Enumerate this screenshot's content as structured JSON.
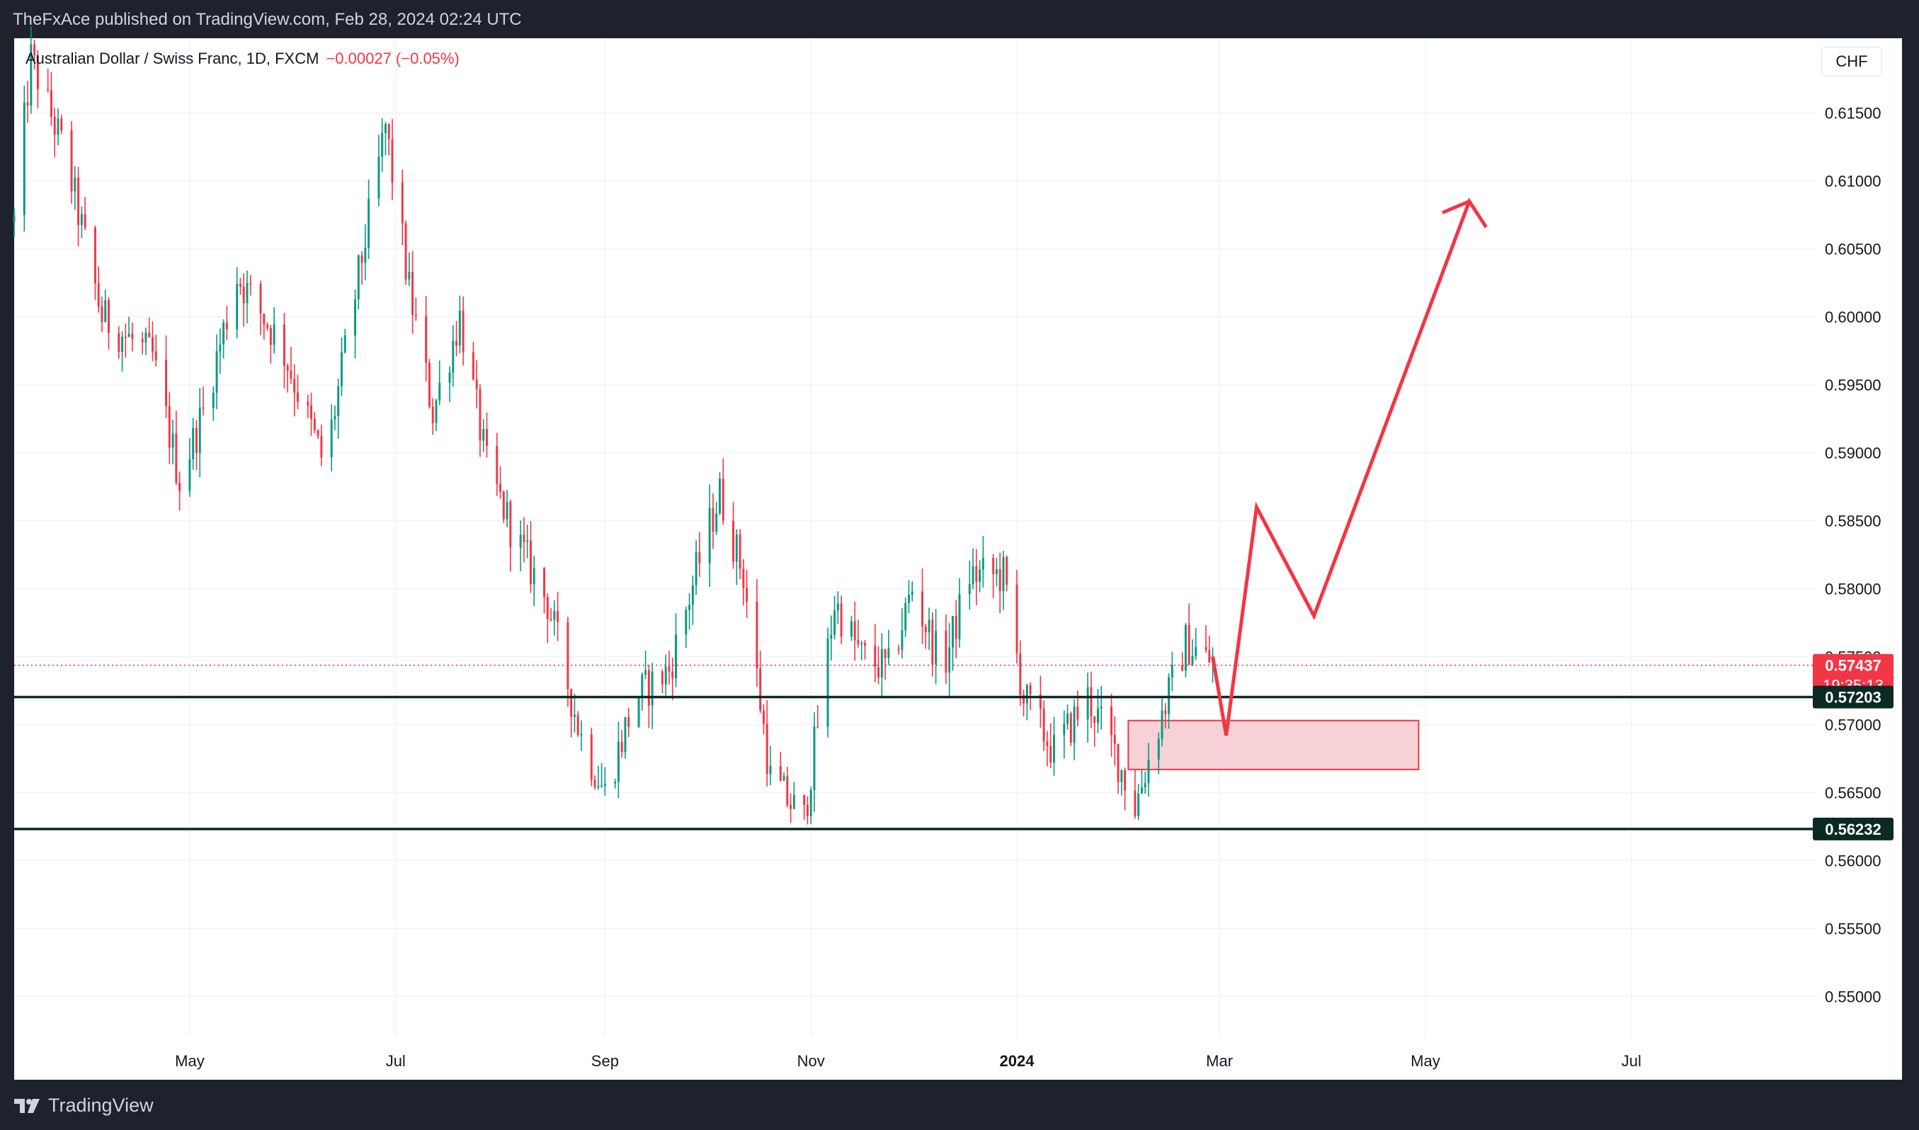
{
  "header": {
    "published": "TheFxAce published on TradingView.com, Feb 28, 2024 02:24 UTC"
  },
  "legend": {
    "symbol": "Australian Dollar / Swiss Franc, 1D, FXCM",
    "change": "−0.00027 (−0.05%)"
  },
  "currency_button": "CHF",
  "brand": {
    "name": "TradingView"
  },
  "colors": {
    "up": "#089981",
    "down": "#f23645",
    "projection": "#f23645",
    "zone_fill": "#f7c9cf",
    "level_line": "#0b2a24",
    "badge_dark": "#0b2a24"
  },
  "chart_data": {
    "type": "candlestick",
    "title": "Australian Dollar / Swiss Franc, 1D, FXCM",
    "ylim": [
      0.547,
      0.6205
    ],
    "xlim": [
      "2023-03-10",
      "2024-08-25"
    ],
    "y_ticks": [
      "0.61500",
      "0.61000",
      "0.60500",
      "0.60000",
      "0.59500",
      "0.59000",
      "0.58500",
      "0.58000",
      "0.57500",
      "0.57000",
      "0.56500",
      "0.56000",
      "0.55500",
      "0.55000"
    ],
    "x_ticks": [
      {
        "label": "May",
        "date": "2023-05-01",
        "bold": false
      },
      {
        "label": "Jul",
        "date": "2023-07-01",
        "bold": false
      },
      {
        "label": "Sep",
        "date": "2023-09-01",
        "bold": false
      },
      {
        "label": "Nov",
        "date": "2023-11-01",
        "bold": false
      },
      {
        "label": "2024",
        "date": "2024-01-01",
        "bold": true
      },
      {
        "label": "Mar",
        "date": "2024-03-01",
        "bold": false
      },
      {
        "label": "May",
        "date": "2024-05-01",
        "bold": false
      },
      {
        "label": "Jul",
        "date": "2024-07-01",
        "bold": false
      }
    ],
    "price_path": [
      [
        "2023-03-10",
        0.607
      ],
      [
        "2023-03-15",
        0.619
      ],
      [
        "2023-03-25",
        0.612
      ],
      [
        "2023-04-05",
        0.6
      ],
      [
        "2023-04-20",
        0.597
      ],
      [
        "2023-04-28",
        0.588
      ],
      [
        "2023-05-05",
        0.593
      ],
      [
        "2023-05-15",
        0.603
      ],
      [
        "2023-05-28",
        0.598
      ],
      [
        "2023-06-10",
        0.589
      ],
      [
        "2023-06-20",
        0.603
      ],
      [
        "2023-06-28",
        0.614
      ],
      [
        "2023-07-05",
        0.602
      ],
      [
        "2023-07-12",
        0.593
      ],
      [
        "2023-07-20",
        0.6
      ],
      [
        "2023-07-28",
        0.589
      ],
      [
        "2023-08-05",
        0.584
      ],
      [
        "2023-08-15",
        0.579
      ],
      [
        "2023-08-25",
        0.569
      ],
      [
        "2023-09-01",
        0.565
      ],
      [
        "2023-09-10",
        0.572
      ],
      [
        "2023-09-20",
        0.574
      ],
      [
        "2023-09-30",
        0.583
      ],
      [
        "2023-10-05",
        0.587
      ],
      [
        "2023-10-12",
        0.581
      ],
      [
        "2023-10-20",
        0.566
      ],
      [
        "2023-10-30",
        0.563
      ],
      [
        "2023-11-08",
        0.579
      ],
      [
        "2023-11-16",
        0.575
      ],
      [
        "2023-11-24",
        0.574
      ],
      [
        "2023-12-01",
        0.58
      ],
      [
        "2023-12-10",
        0.574
      ],
      [
        "2023-12-18",
        0.581
      ],
      [
        "2023-12-28",
        0.581
      ],
      [
        "2024-01-03",
        0.572
      ],
      [
        "2024-01-12",
        0.568
      ],
      [
        "2024-01-22",
        0.572
      ],
      [
        "2024-01-30",
        0.568
      ],
      [
        "2024-02-05",
        0.564
      ],
      [
        "2024-02-12",
        0.57
      ],
      [
        "2024-02-20",
        0.576
      ],
      [
        "2024-02-28",
        0.5745
      ]
    ],
    "levels": [
      {
        "value": 0.57437,
        "label": "0.57437",
        "style": "dotted",
        "color": "#f23645",
        "badge_color": "#f23645",
        "sublabel": "19:35:13"
      },
      {
        "value": 0.57203,
        "label": "0.57203",
        "style": "solid",
        "color": "#0b2a24",
        "badge_color": "#0b2a24"
      },
      {
        "value": 0.56232,
        "label": "0.56232",
        "style": "solid",
        "color": "#0b2a24",
        "badge_color": "#0b2a24"
      }
    ],
    "demand_zone": {
      "x0": "2024-02-03",
      "x1": "2024-04-29",
      "y0": 0.5667,
      "y1": 0.5703
    },
    "projection": [
      [
        "2024-02-28",
        0.575
      ],
      [
        "2024-03-03",
        0.5692
      ],
      [
        "2024-03-12",
        0.586
      ],
      [
        "2024-03-29",
        0.578
      ],
      [
        "2024-05-14",
        0.6085
      ],
      [
        "2024-05-19",
        0.6066
      ]
    ]
  }
}
